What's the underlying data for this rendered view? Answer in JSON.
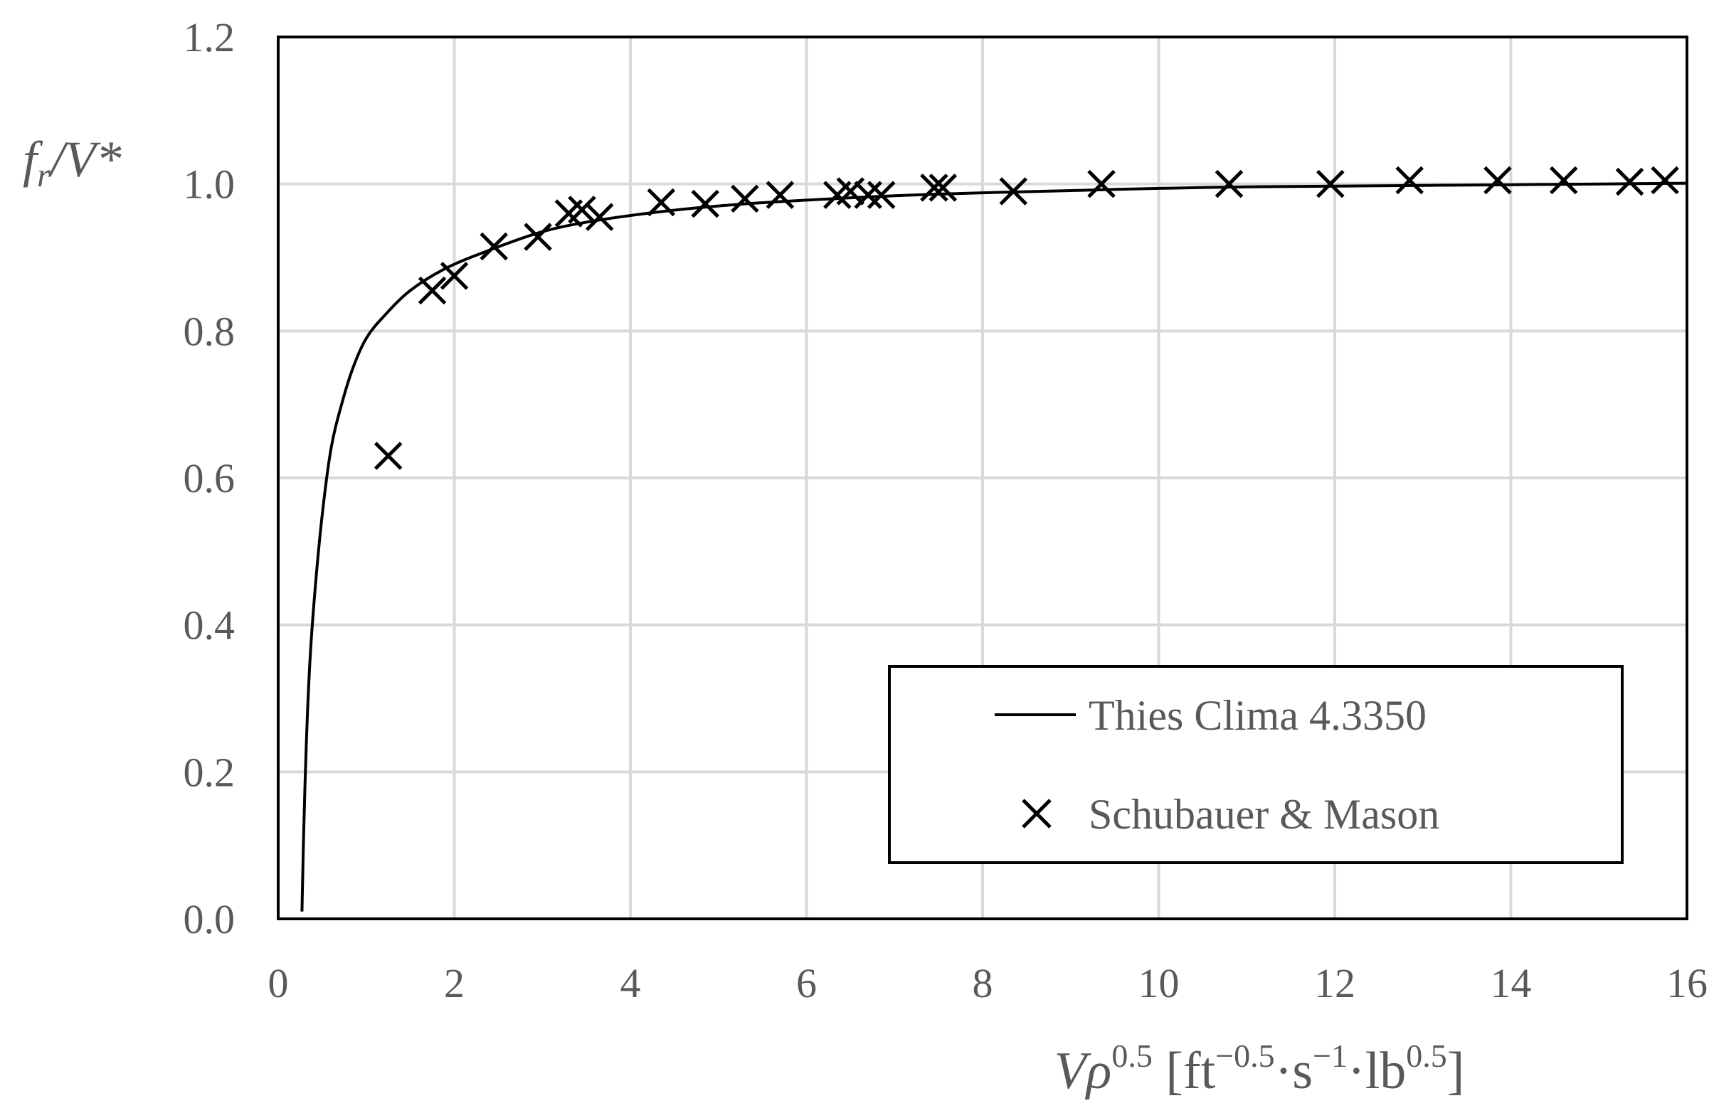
{
  "chart_data": {
    "type": "scatter",
    "title": "",
    "xlabel": {
      "main": "Vρ",
      "exp1": "0.5",
      "bracket_open": " [ft",
      "exp2": "−0.5",
      "dot1": "·s",
      "exp3": "−1",
      "dot2": "·lb",
      "exp4": "0.5",
      "bracket_close": "]"
    },
    "ylabel": {
      "f": "f",
      "sub": "r",
      "rest": "/V*"
    },
    "xlim": [
      0,
      16
    ],
    "ylim": [
      0,
      1.2
    ],
    "xticks": [
      "0",
      "2",
      "4",
      "6",
      "8",
      "10",
      "12",
      "14",
      "16"
    ],
    "yticks": [
      "0.0",
      "0.2",
      "0.4",
      "0.6",
      "0.8",
      "1.0",
      "1.2"
    ],
    "grid": true,
    "legend_position": "lower-right",
    "series": [
      {
        "name": "Thies Clima 4.3350",
        "kind": "line",
        "color": "#000000",
        "x": [
          0.27,
          0.29,
          0.32,
          0.36,
          0.42,
          0.5,
          0.6,
          0.72,
          0.85,
          1.0,
          1.2,
          1.5,
          1.9,
          2.4,
          3.0,
          3.6,
          4.4,
          5.2,
          6.0,
          7.0,
          8.0,
          9.0,
          10.0,
          11.0,
          12.0,
          13.0,
          14.0,
          15.0,
          16.0
        ],
        "y": [
          0.01,
          0.12,
          0.24,
          0.35,
          0.45,
          0.55,
          0.64,
          0.7,
          0.75,
          0.79,
          0.82,
          0.855,
          0.885,
          0.91,
          0.935,
          0.95,
          0.963,
          0.972,
          0.978,
          0.984,
          0.988,
          0.991,
          0.994,
          0.996,
          0.997,
          0.998,
          0.999,
          1.0,
          1.001
        ]
      },
      {
        "name": "Schubauer & Mason",
        "kind": "marker",
        "marker": "x",
        "color": "#000000",
        "x": [
          1.25,
          1.75,
          2.0,
          2.45,
          2.95,
          3.3,
          3.45,
          3.65,
          4.35,
          4.85,
          5.3,
          5.7,
          6.35,
          6.5,
          6.7,
          6.85,
          7.45,
          7.55,
          8.35,
          9.35,
          10.8,
          11.95,
          12.85,
          13.85,
          14.6,
          15.35,
          15.75
        ],
        "y": [
          0.63,
          0.855,
          0.875,
          0.915,
          0.928,
          0.96,
          0.965,
          0.955,
          0.975,
          0.973,
          0.98,
          0.985,
          0.985,
          0.99,
          0.985,
          0.985,
          0.995,
          0.995,
          0.99,
          1.0,
          1.0,
          1.0,
          1.005,
          1.005,
          1.005,
          1.003,
          1.005
        ]
      }
    ],
    "legend": {
      "line_label": "Thies Clima 4.3350",
      "marker_label": "Schubauer & Mason"
    }
  }
}
